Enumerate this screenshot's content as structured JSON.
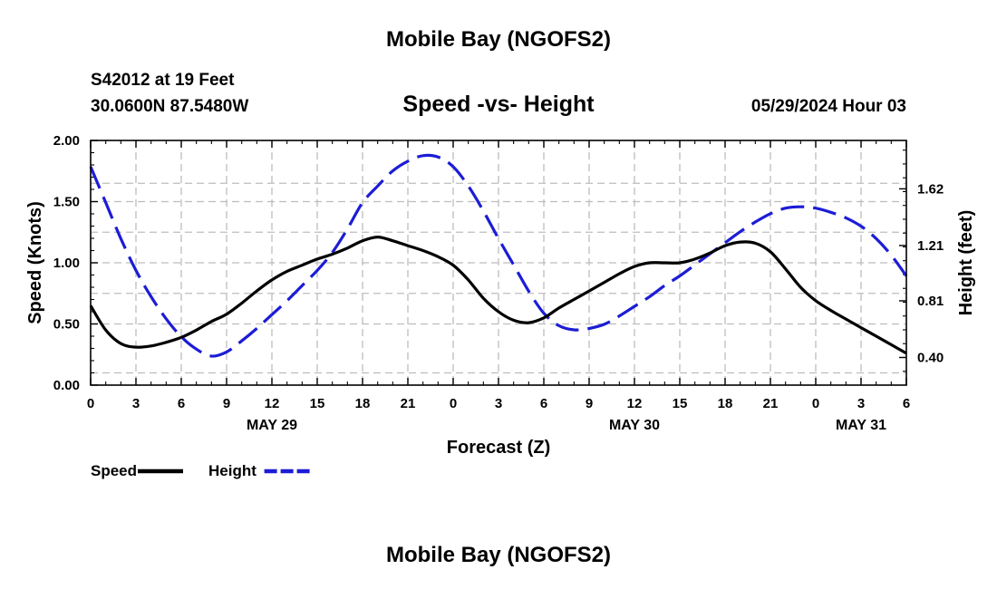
{
  "header": {
    "title": "Mobile Bay (NGOFS2)",
    "station": "S42012 at 19 Feet",
    "coords": "30.0600N  87.5480W",
    "subtitle": "Speed -vs- Height",
    "timestamp": "05/29/2024 Hour 03"
  },
  "footer": {
    "title": "Mobile Bay (NGOFS2)"
  },
  "chart_data": {
    "type": "line",
    "title": "Speed -vs- Height",
    "xlabel": "Forecast (Z)",
    "ylabel": "Speed (Knots)",
    "y2label": "Height (feet)",
    "grid": true,
    "legend_position": "bottom-left",
    "x_hours": [
      0,
      54
    ],
    "x_tick_hours": [
      0,
      3,
      6,
      9,
      12,
      15,
      18,
      21,
      24,
      27,
      30,
      33,
      36,
      39,
      42,
      45,
      48,
      51,
      54
    ],
    "x_tick_labels": [
      "0",
      "3",
      "6",
      "9",
      "12",
      "15",
      "18",
      "21",
      "0",
      "3",
      "6",
      "9",
      "12",
      "15",
      "18",
      "21",
      "0",
      "3",
      "6"
    ],
    "date_labels": [
      {
        "hour": 12,
        "label": "MAY 29"
      },
      {
        "hour": 36,
        "label": "MAY 30"
      },
      {
        "hour": 51,
        "label": "MAY 31"
      }
    ],
    "ylim": [
      0,
      2
    ],
    "y_ticks": [
      0,
      0.5,
      1,
      1.5,
      2
    ],
    "y_tick_labels": [
      "0.00",
      "0.50",
      "1.00",
      "1.50",
      "2.00"
    ],
    "y2lim": [
      0.2,
      1.97
    ],
    "y2_ticks": [
      0.4,
      0.81,
      1.21,
      1.62
    ],
    "y2_tick_labels": [
      "0.40",
      "0.81",
      "1.21",
      "1.62"
    ],
    "series": [
      {
        "name": "Speed",
        "axis": "left",
        "color": "#000000",
        "style": "solid",
        "x": [
          0,
          1,
          2,
          3,
          4,
          5,
          6,
          7,
          8,
          9,
          10,
          11,
          12,
          13,
          14,
          15,
          16,
          17,
          18,
          19,
          20,
          21,
          22,
          23,
          24,
          25,
          26,
          27,
          28,
          29,
          30,
          31,
          32,
          33,
          34,
          35,
          36,
          37,
          38,
          39,
          40,
          41,
          42,
          43,
          44,
          45,
          46,
          47,
          48,
          49,
          50,
          51,
          52,
          53,
          54
        ],
        "values": [
          0.65,
          0.45,
          0.34,
          0.31,
          0.32,
          0.35,
          0.39,
          0.45,
          0.52,
          0.58,
          0.67,
          0.77,
          0.86,
          0.93,
          0.98,
          1.03,
          1.07,
          1.12,
          1.18,
          1.21,
          1.18,
          1.14,
          1.1,
          1.05,
          0.98,
          0.86,
          0.71,
          0.6,
          0.53,
          0.51,
          0.55,
          0.63,
          0.7,
          0.77,
          0.84,
          0.91,
          0.97,
          1.0,
          1.0,
          1.0,
          1.03,
          1.08,
          1.14,
          1.17,
          1.16,
          1.09,
          0.95,
          0.8,
          0.69,
          0.61,
          0.54,
          0.47,
          0.4,
          0.33,
          0.26
        ]
      },
      {
        "name": "Height",
        "axis": "right",
        "color": "#1c1cd6",
        "style": "dashed",
        "x": [
          0,
          1,
          2,
          3,
          4,
          5,
          6,
          7,
          8,
          9,
          10,
          11,
          12,
          13,
          14,
          15,
          16,
          17,
          18,
          19,
          20,
          21,
          22,
          23,
          24,
          25,
          26,
          27,
          28,
          29,
          30,
          31,
          32,
          33,
          34,
          35,
          36,
          37,
          38,
          39,
          40,
          41,
          42,
          43,
          44,
          45,
          46,
          47,
          48,
          49,
          50,
          51,
          52,
          53,
          54
        ],
        "values": [
          1.78,
          1.52,
          1.26,
          1.03,
          0.84,
          0.68,
          0.55,
          0.46,
          0.41,
          0.44,
          0.52,
          0.61,
          0.71,
          0.81,
          0.92,
          1.03,
          1.16,
          1.33,
          1.52,
          1.64,
          1.75,
          1.82,
          1.86,
          1.85,
          1.78,
          1.64,
          1.46,
          1.26,
          1.07,
          0.88,
          0.72,
          0.63,
          0.6,
          0.61,
          0.64,
          0.7,
          0.77,
          0.84,
          0.92,
          0.99,
          1.07,
          1.15,
          1.23,
          1.31,
          1.38,
          1.44,
          1.48,
          1.49,
          1.48,
          1.45,
          1.41,
          1.35,
          1.26,
          1.14,
          0.99
        ]
      }
    ]
  }
}
